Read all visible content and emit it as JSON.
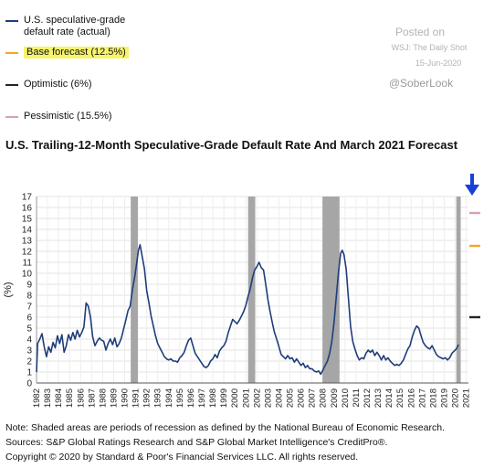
{
  "legend": [
    {
      "label": "U.S. speculative-grade default rate (actual)",
      "color": "#1f3d7a",
      "highlight": false
    },
    {
      "label": "Base forecast (12.5%)",
      "color": "#f5a623",
      "highlight": true
    },
    {
      "label": "Optimistic  (6%)",
      "color": "#2b2220",
      "highlight": false
    },
    {
      "label": "Pessimistic (15.5%)",
      "color": "#d9a0b0",
      "highlight": false
    }
  ],
  "watermark": {
    "posted": "Posted on",
    "source": "WSJ: The Daily Shot",
    "date": "15-Jun-2020",
    "handle": "@SoberLook"
  },
  "title": "U.S. Trailing-12-Month Speculative-Grade Default Rate And March 2021 Forecast",
  "notes": [
    "Note: Shaded areas are periods of recession as defined by the National Bureau of Economic Research.",
    "Sources: S&P Global Ratings Research and S&P Global Market Intelligence's CreditPro®.",
    "Copyright © 2020 by Standard & Poor's Financial Services LLC. All rights reserved."
  ],
  "arrow_color": "#1a3fd6",
  "chart_data": {
    "type": "line",
    "ylabel": "(%)",
    "ylim": [
      0,
      17
    ],
    "yticks": [
      0,
      1,
      2,
      3,
      4,
      5,
      6,
      7,
      8,
      9,
      10,
      11,
      12,
      13,
      14,
      15,
      16,
      17
    ],
    "xlim": [
      1982.0,
      2021.2
    ],
    "xticks": [
      "1982",
      "1983",
      "1984",
      "1985",
      "1986",
      "1987",
      "1988",
      "1989",
      "1990",
      "1991",
      "1992",
      "1993",
      "1994",
      "1995",
      "1996",
      "1997",
      "1998",
      "1999",
      "2000",
      "2001",
      "2002",
      "2003",
      "2004",
      "2005",
      "2006",
      "2007",
      "2008",
      "2009",
      "2010",
      "2011",
      "2012",
      "2013",
      "2014",
      "2015",
      "2016",
      "2017",
      "2018",
      "2019",
      "2020",
      "2021"
    ],
    "grid": true,
    "recessions": [
      {
        "start": 1990.55,
        "end": 1991.2
      },
      {
        "start": 2001.2,
        "end": 2001.85
      },
      {
        "start": 2007.95,
        "end": 2009.5
      },
      {
        "start": 2020.1,
        "end": 2020.5
      }
    ],
    "recession_color": "#a6a6a6",
    "series": [
      {
        "name": "U.S. speculative-grade default rate (actual)",
        "color": "#1f3d7a",
        "points": [
          [
            1982.0,
            1.0
          ],
          [
            1982.1,
            3.6
          ],
          [
            1982.3,
            4.0
          ],
          [
            1982.5,
            4.5
          ],
          [
            1982.7,
            3.3
          ],
          [
            1982.9,
            2.4
          ],
          [
            1983.1,
            3.3
          ],
          [
            1983.3,
            2.8
          ],
          [
            1983.5,
            3.7
          ],
          [
            1983.7,
            3.2
          ],
          [
            1983.9,
            4.3
          ],
          [
            1984.1,
            3.6
          ],
          [
            1984.3,
            4.4
          ],
          [
            1984.5,
            2.8
          ],
          [
            1984.7,
            3.4
          ],
          [
            1984.9,
            4.4
          ],
          [
            1985.1,
            3.9
          ],
          [
            1985.3,
            4.6
          ],
          [
            1985.5,
            4.0
          ],
          [
            1985.7,
            4.8
          ],
          [
            1985.9,
            4.2
          ],
          [
            1986.1,
            4.6
          ],
          [
            1986.3,
            5.1
          ],
          [
            1986.5,
            7.3
          ],
          [
            1986.7,
            7.0
          ],
          [
            1986.9,
            6.0
          ],
          [
            1987.1,
            4.2
          ],
          [
            1987.3,
            3.4
          ],
          [
            1987.5,
            3.8
          ],
          [
            1987.7,
            4.1
          ],
          [
            1987.9,
            3.9
          ],
          [
            1988.1,
            3.8
          ],
          [
            1988.3,
            3.0
          ],
          [
            1988.5,
            3.6
          ],
          [
            1988.7,
            4.0
          ],
          [
            1988.9,
            3.5
          ],
          [
            1989.1,
            4.1
          ],
          [
            1989.3,
            3.3
          ],
          [
            1989.5,
            3.6
          ],
          [
            1989.7,
            4.1
          ],
          [
            1989.9,
            4.9
          ],
          [
            1990.1,
            5.7
          ],
          [
            1990.3,
            6.6
          ],
          [
            1990.5,
            7.0
          ],
          [
            1990.7,
            8.5
          ],
          [
            1990.9,
            9.6
          ],
          [
            1991.1,
            11.0
          ],
          [
            1991.25,
            12.1
          ],
          [
            1991.4,
            12.6
          ],
          [
            1991.6,
            11.5
          ],
          [
            1991.8,
            10.4
          ],
          [
            1992.0,
            8.4
          ],
          [
            1992.2,
            7.3
          ],
          [
            1992.4,
            6.1
          ],
          [
            1992.6,
            5.2
          ],
          [
            1992.8,
            4.3
          ],
          [
            1993.0,
            3.6
          ],
          [
            1993.2,
            3.2
          ],
          [
            1993.4,
            2.8
          ],
          [
            1993.6,
            2.4
          ],
          [
            1993.8,
            2.2
          ],
          [
            1994.0,
            2.1
          ],
          [
            1994.2,
            2.2
          ],
          [
            1994.4,
            2.0
          ],
          [
            1994.6,
            2.0
          ],
          [
            1994.8,
            1.9
          ],
          [
            1995.0,
            2.3
          ],
          [
            1995.2,
            2.5
          ],
          [
            1995.4,
            2.8
          ],
          [
            1995.6,
            3.4
          ],
          [
            1995.8,
            3.9
          ],
          [
            1996.0,
            4.1
          ],
          [
            1996.2,
            3.4
          ],
          [
            1996.4,
            2.7
          ],
          [
            1996.6,
            2.4
          ],
          [
            1996.8,
            2.1
          ],
          [
            1997.0,
            1.8
          ],
          [
            1997.2,
            1.5
          ],
          [
            1997.4,
            1.4
          ],
          [
            1997.6,
            1.6
          ],
          [
            1997.8,
            2.0
          ],
          [
            1998.0,
            2.2
          ],
          [
            1998.2,
            2.6
          ],
          [
            1998.4,
            2.3
          ],
          [
            1998.6,
            2.9
          ],
          [
            1998.8,
            3.2
          ],
          [
            1999.0,
            3.4
          ],
          [
            1999.2,
            3.8
          ],
          [
            1999.4,
            4.6
          ],
          [
            1999.6,
            5.2
          ],
          [
            1999.8,
            5.8
          ],
          [
            2000.0,
            5.6
          ],
          [
            2000.2,
            5.4
          ],
          [
            2000.4,
            5.7
          ],
          [
            2000.6,
            6.1
          ],
          [
            2000.8,
            6.5
          ],
          [
            2001.0,
            7.1
          ],
          [
            2001.2,
            7.9
          ],
          [
            2001.4,
            8.6
          ],
          [
            2001.6,
            9.6
          ],
          [
            2001.8,
            10.3
          ],
          [
            2002.0,
            10.6
          ],
          [
            2002.2,
            11.0
          ],
          [
            2002.4,
            10.5
          ],
          [
            2002.6,
            10.3
          ],
          [
            2002.8,
            9.0
          ],
          [
            2003.0,
            7.6
          ],
          [
            2003.2,
            6.5
          ],
          [
            2003.4,
            5.5
          ],
          [
            2003.6,
            4.6
          ],
          [
            2003.8,
            4.0
          ],
          [
            2004.0,
            3.3
          ],
          [
            2004.2,
            2.6
          ],
          [
            2004.4,
            2.4
          ],
          [
            2004.6,
            2.2
          ],
          [
            2004.8,
            2.5
          ],
          [
            2005.0,
            2.2
          ],
          [
            2005.2,
            2.3
          ],
          [
            2005.4,
            1.9
          ],
          [
            2005.6,
            2.2
          ],
          [
            2005.8,
            1.9
          ],
          [
            2006.0,
            1.6
          ],
          [
            2006.2,
            1.8
          ],
          [
            2006.4,
            1.4
          ],
          [
            2006.6,
            1.6
          ],
          [
            2006.8,
            1.3
          ],
          [
            2007.0,
            1.3
          ],
          [
            2007.2,
            1.1
          ],
          [
            2007.4,
            1.0
          ],
          [
            2007.6,
            1.1
          ],
          [
            2007.8,
            0.8
          ],
          [
            2008.0,
            1.2
          ],
          [
            2008.2,
            1.6
          ],
          [
            2008.4,
            2.0
          ],
          [
            2008.6,
            2.7
          ],
          [
            2008.8,
            3.8
          ],
          [
            2009.0,
            5.5
          ],
          [
            2009.2,
            7.8
          ],
          [
            2009.4,
            10.0
          ],
          [
            2009.6,
            11.8
          ],
          [
            2009.75,
            12.1
          ],
          [
            2009.9,
            11.7
          ],
          [
            2010.1,
            10.4
          ],
          [
            2010.3,
            7.8
          ],
          [
            2010.5,
            5.2
          ],
          [
            2010.7,
            3.8
          ],
          [
            2010.9,
            3.1
          ],
          [
            2011.1,
            2.5
          ],
          [
            2011.3,
            2.1
          ],
          [
            2011.5,
            2.3
          ],
          [
            2011.7,
            2.2
          ],
          [
            2011.9,
            2.7
          ],
          [
            2012.1,
            3.0
          ],
          [
            2012.3,
            2.8
          ],
          [
            2012.5,
            3.0
          ],
          [
            2012.7,
            2.5
          ],
          [
            2012.9,
            2.8
          ],
          [
            2013.1,
            2.5
          ],
          [
            2013.3,
            2.1
          ],
          [
            2013.5,
            2.5
          ],
          [
            2013.7,
            2.1
          ],
          [
            2013.9,
            2.3
          ],
          [
            2014.1,
            2.0
          ],
          [
            2014.3,
            1.8
          ],
          [
            2014.5,
            1.6
          ],
          [
            2014.7,
            1.7
          ],
          [
            2014.9,
            1.6
          ],
          [
            2015.1,
            1.8
          ],
          [
            2015.3,
            2.1
          ],
          [
            2015.5,
            2.6
          ],
          [
            2015.7,
            3.1
          ],
          [
            2015.9,
            3.4
          ],
          [
            2016.1,
            4.2
          ],
          [
            2016.3,
            4.8
          ],
          [
            2016.5,
            5.2
          ],
          [
            2016.7,
            5.0
          ],
          [
            2016.9,
            4.3
          ],
          [
            2017.1,
            3.7
          ],
          [
            2017.3,
            3.4
          ],
          [
            2017.5,
            3.2
          ],
          [
            2017.7,
            3.1
          ],
          [
            2017.9,
            3.4
          ],
          [
            2018.1,
            3.0
          ],
          [
            2018.3,
            2.6
          ],
          [
            2018.5,
            2.4
          ],
          [
            2018.7,
            2.3
          ],
          [
            2018.9,
            2.2
          ],
          [
            2019.1,
            2.3
          ],
          [
            2019.3,
            2.1
          ],
          [
            2019.5,
            2.3
          ],
          [
            2019.7,
            2.7
          ],
          [
            2019.9,
            2.9
          ],
          [
            2020.1,
            3.1
          ],
          [
            2020.3,
            3.5
          ]
        ]
      }
    ],
    "forecasts": [
      {
        "name": "Base forecast (12.5%)",
        "value": 12.5,
        "color": "#f5a623"
      },
      {
        "name": "Optimistic  (6%)",
        "value": 6.0,
        "color": "#2b2220"
      },
      {
        "name": "Pessimistic (15.5%)",
        "value": 15.5,
        "color": "#d9a0b0"
      }
    ]
  }
}
